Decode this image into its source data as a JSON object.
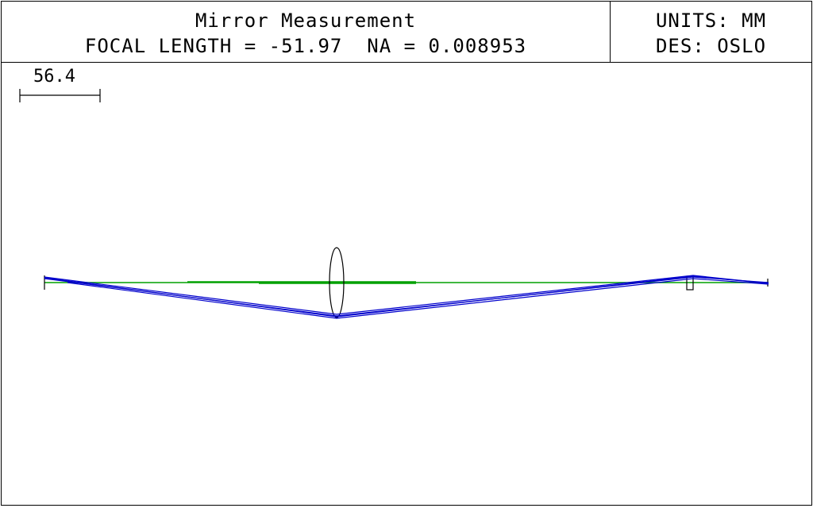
{
  "header": {
    "title": "Mirror Measurement",
    "focal_label": "FOCAL LENGTH = -51.97",
    "na_label": "NA = 0.008953",
    "units": "UNITS: MM",
    "designer": "DES: OSLO"
  },
  "scale_bar": {
    "label": "56.4"
  },
  "colors": {
    "axis": "#00a000",
    "rays": "#0000cc",
    "outline": "#000000",
    "background": "#ffffff"
  }
}
